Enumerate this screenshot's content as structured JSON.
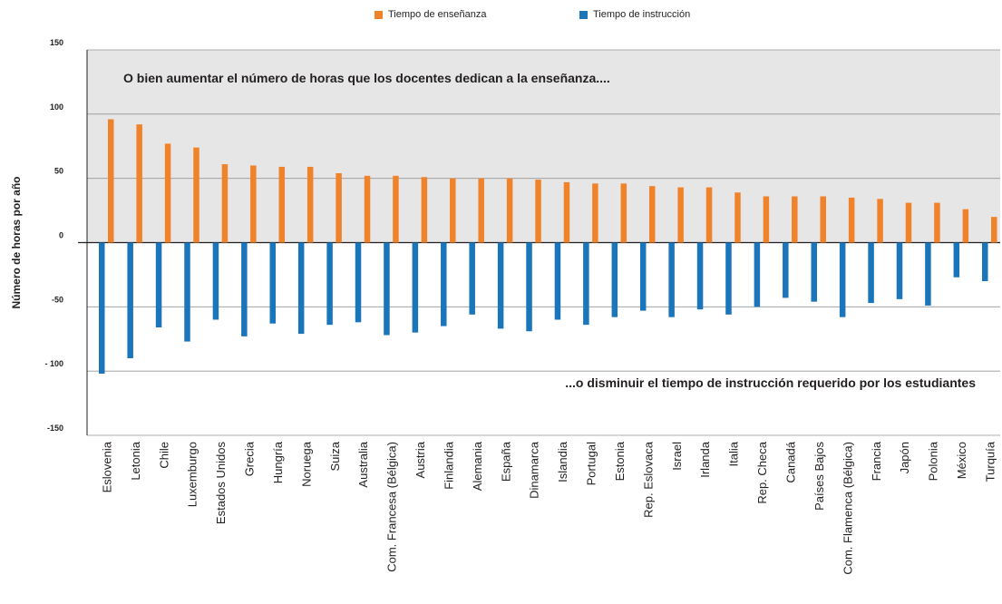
{
  "legend": {
    "teaching": "Tiempo de enseñanza",
    "instruction": "Tiempo de instrucción"
  },
  "colors": {
    "teaching": "#f0832a",
    "instruction": "#1b75bb",
    "band": "#e6e6e7",
    "grid": "#939598",
    "axis": "#231f20"
  },
  "chart_data": {
    "type": "bar",
    "title": "",
    "xlabel": "",
    "ylabel": "Número de horas por año",
    "ylim": [
      -150,
      150
    ],
    "yticks": [
      {
        "value": 150,
        "label": "150"
      },
      {
        "value": 100,
        "label": "100"
      },
      {
        "value": 50,
        "label": "50"
      },
      {
        "value": 0,
        "label": "0"
      },
      {
        "value": -50,
        "label": "-50"
      },
      {
        "value": -100,
        "label": "- 100"
      },
      {
        "value": -150,
        "label": "-150"
      }
    ],
    "shaded_band": [
      0,
      150
    ],
    "grid": true,
    "legend_position": "top-center",
    "annotations": {
      "top": "O bien aumentar el número de horas que los docentes dedican a la enseñanza....",
      "bottom": "...o disminuir el tiempo de instrucción requerido por los estudiantes"
    },
    "categories": [
      "Eslovenia",
      "Letonia",
      "Chile",
      "Luxemburgo",
      "Estados Unidos",
      "Grecia",
      "Hungría",
      "Noruega",
      "Suiza",
      "Australia",
      "Com. Francesa (Bélgica)",
      "Austria",
      "Finlandia",
      "Alemania",
      "España",
      "Dinamarca",
      "Islandia",
      "Portugal",
      "Estonia",
      "Rep. Eslovaca",
      "Israel",
      "Irlanda",
      "Italia",
      "Rep. Checa",
      "Canadá",
      "Países Bajos",
      "Com. Flamenca (Bélgica)",
      "Francia",
      "Japón",
      "Polonia",
      "México",
      "Turquía"
    ],
    "series": [
      {
        "name": "Tiempo de enseñanza",
        "values": [
          96,
          92,
          77,
          74,
          61,
          60,
          59,
          59,
          54,
          52,
          52,
          51,
          50,
          50,
          50,
          49,
          47,
          46,
          46,
          44,
          43,
          43,
          39,
          36,
          36,
          36,
          35,
          34,
          31,
          31,
          26,
          20
        ]
      },
      {
        "name": "Tiempo de instrucción",
        "values": [
          -102,
          -90,
          -66,
          -77,
          -60,
          -73,
          -63,
          -71,
          -64,
          -62,
          -72,
          -70,
          -65,
          -56,
          -67,
          -69,
          -60,
          -64,
          -58,
          -53,
          -58,
          -52,
          -56,
          -50,
          -43,
          -46,
          -58,
          -47,
          -44,
          -49,
          -27,
          -30
        ]
      }
    ]
  }
}
